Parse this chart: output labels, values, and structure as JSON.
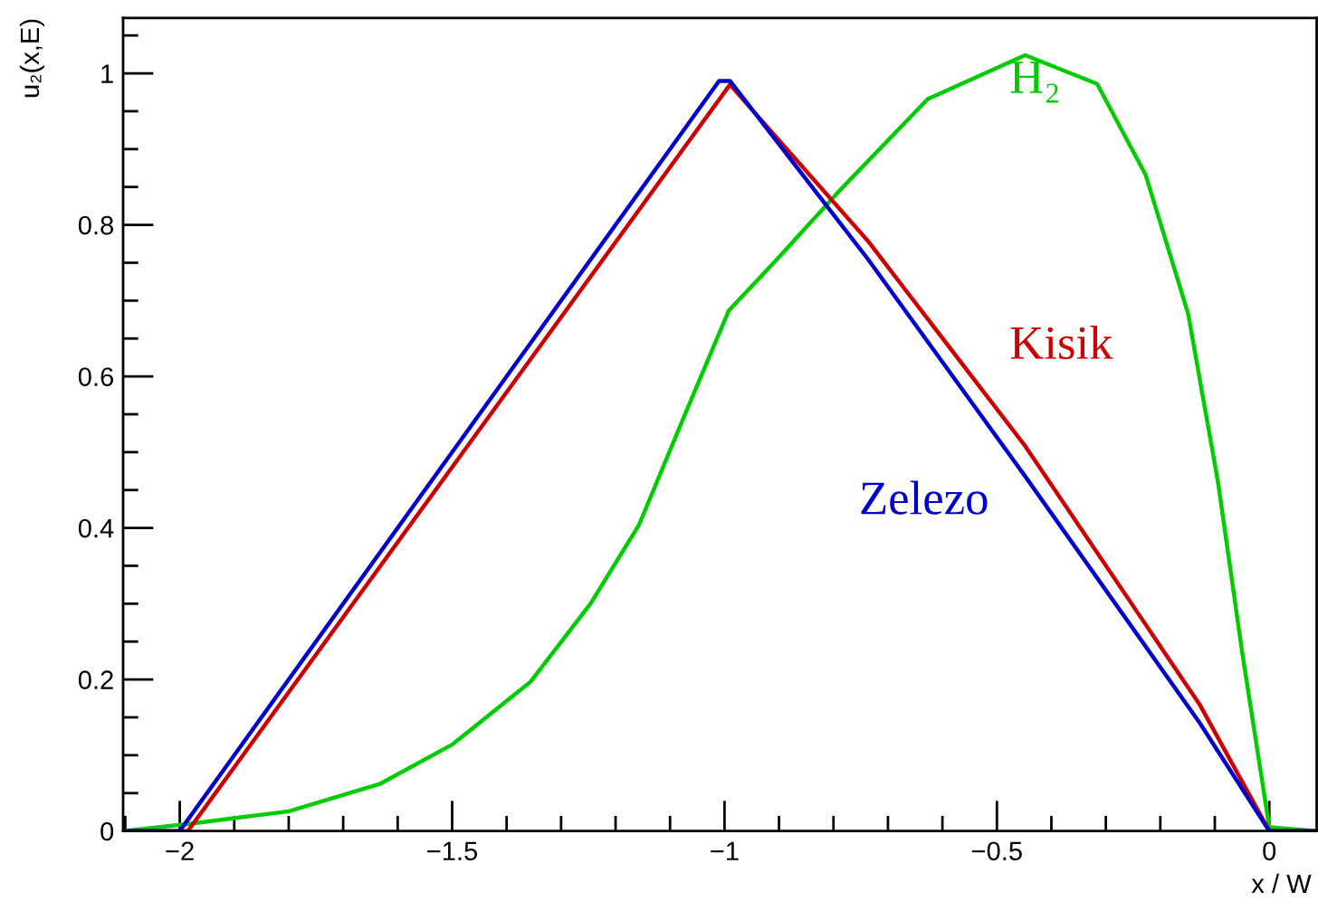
{
  "chart_data": {
    "type": "line",
    "xlabel": "x / W",
    "ylabel": "u₂(x,E)",
    "xlim": [
      -2.104,
      0.087
    ],
    "ylim": [
      0,
      1.073
    ],
    "xticks": [
      {
        "value": -2,
        "label": "−2"
      },
      {
        "value": -1.5,
        "label": "−1.5"
      },
      {
        "value": -1,
        "label": "−1"
      },
      {
        "value": -0.5,
        "label": "−0.5"
      },
      0
    ],
    "yticks": [
      0,
      0.2,
      0.4,
      0.6,
      0.8,
      1
    ],
    "grid": false,
    "legend": false,
    "marker": "none",
    "line_style": "solid",
    "series": [
      {
        "name": "H₂",
        "color": "#00cc00",
        "x": [
          -2.104,
          -1.976,
          -1.8,
          -1.633,
          -1.5,
          -1.356,
          -1.246,
          -1.157,
          -1.069,
          -0.992,
          -0.903,
          -0.793,
          -0.627,
          -0.448,
          -0.316,
          -0.227,
          -0.149,
          -0.094,
          -0.05,
          0,
          0.087
        ],
        "values": [
          0,
          0.01,
          0.026,
          0.062,
          0.114,
          0.197,
          0.3,
          0.404,
          0.556,
          0.687,
          0.755,
          0.842,
          0.966,
          1.024,
          0.986,
          0.866,
          0.683,
          0.46,
          0.237,
          0.005,
          0
        ]
      },
      {
        "name": "Kisik",
        "color": "#cc0000",
        "x": [
          -2.104,
          -1.985,
          -0.99,
          -0.737,
          -0.448,
          -0.127,
          0,
          0.087
        ],
        "values": [
          0,
          0,
          0.985,
          0.779,
          0.508,
          0.166,
          0,
          0
        ]
      },
      {
        "name": "Zelezo",
        "color": "#0000cc",
        "x": [
          -2.104,
          -2.0,
          -1.01,
          -0.99,
          -0.737,
          -0.448,
          -0.127,
          0,
          0.087
        ],
        "values": [
          0,
          0,
          0.99,
          0.99,
          0.755,
          0.468,
          0.142,
          0,
          0
        ]
      }
    ]
  }
}
